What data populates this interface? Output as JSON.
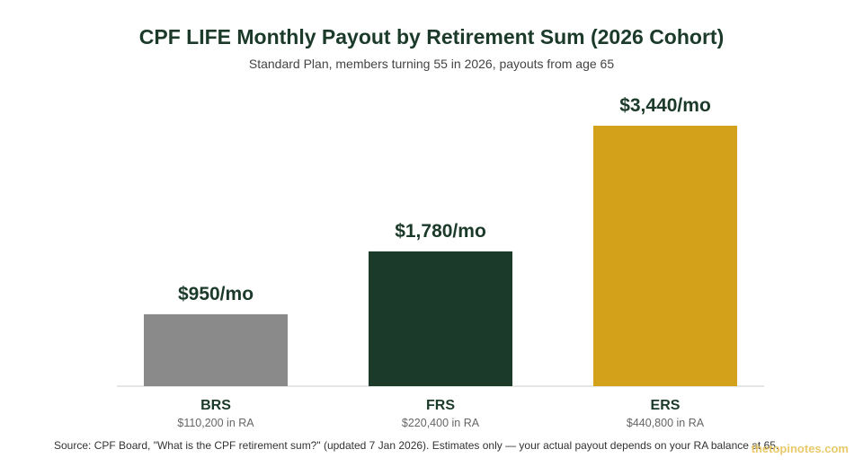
{
  "header": {
    "title": "CPF LIFE Monthly Payout by Retirement Sum (2026 Cohort)",
    "subtitle": "Standard Plan, members turning 55 in 2026, payouts from age 65"
  },
  "chart_data": {
    "type": "bar",
    "title": "CPF LIFE Monthly Payout by Retirement Sum (2026 Cohort)",
    "subtitle": "Standard Plan, members turning 55 in 2026, payouts from age 65",
    "categories": [
      "BRS",
      "FRS",
      "ERS"
    ],
    "category_sublabels": [
      "$110,200 in RA",
      "$220,400 in RA",
      "$440,800 in RA"
    ],
    "values": [
      950,
      1780,
      3440
    ],
    "value_labels": [
      "$950/mo",
      "$1,780/mo",
      "$3,440/mo"
    ],
    "colors": [
      "#8a8a8a",
      "#1b3a2a",
      "#d4a21a"
    ],
    "ylim": [
      0,
      3440
    ],
    "grid": false,
    "xlabel": "",
    "ylabel": ""
  },
  "footer": {
    "source": "Source: CPF Board, \"What is the CPF retirement sum?\" (updated 7 Jan 2026). Estimates only — your actual payout depends on your RA balance at 65.",
    "watermark": "thetopinotes.com"
  }
}
